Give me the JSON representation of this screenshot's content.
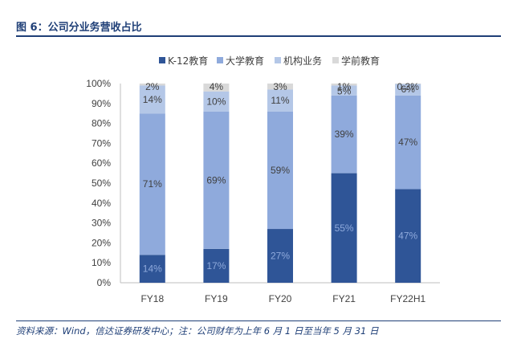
{
  "figure_title": "图 6：公司分业务营收占比",
  "source_note": "资料来源：Wind，信达证券研发中心；注：公司财年为上年 6 月 1 日至当年 5 月 31 日",
  "chart_data": {
    "type": "bar",
    "stacked": true,
    "categories": [
      "FY18",
      "FY19",
      "FY20",
      "FY21",
      "FY22H1"
    ],
    "series": [
      {
        "name": "K-12教育",
        "color": "#2f5597",
        "values": [
          14,
          17,
          27,
          55,
          47
        ],
        "labels": [
          "14%",
          "17%",
          "27%",
          "55%",
          "47%"
        ]
      },
      {
        "name": "大学教育",
        "color": "#8faadc",
        "values": [
          71,
          69,
          59,
          39,
          47
        ],
        "labels": [
          "71%",
          "69%",
          "59%",
          "39%",
          "47%"
        ]
      },
      {
        "name": "机构业务",
        "color": "#b4c7e7",
        "values": [
          14,
          10,
          11,
          5,
          6
        ],
        "labels": [
          "14%",
          "10%",
          "11%",
          "5%",
          "6%"
        ]
      },
      {
        "name": "学前教育",
        "color": "#d9d9d9",
        "values": [
          2,
          4,
          3,
          1,
          0.3
        ],
        "labels": [
          "2%",
          "4%",
          "3%",
          "1%",
          "0.3%"
        ]
      }
    ],
    "ylim": [
      0,
      100
    ],
    "yticks": [
      "0%",
      "10%",
      "20%",
      "30%",
      "40%",
      "50%",
      "60%",
      "70%",
      "80%",
      "90%",
      "100%"
    ],
    "legend_position": "top",
    "grid": false
  }
}
